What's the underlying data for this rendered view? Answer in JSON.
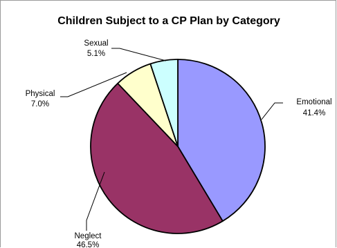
{
  "chart_data": {
    "type": "pie",
    "title": "Children Subject to a CP Plan by Category",
    "start_angle_deg": 0,
    "direction": "clockwise",
    "slices": [
      {
        "label": "Emotional",
        "value": 41.4,
        "value_label": "41.4%",
        "color": "#9999ff"
      },
      {
        "label": "Neglect",
        "value": 46.5,
        "value_label": "46.5%",
        "color": "#993366"
      },
      {
        "label": "Physical",
        "value": 7.0,
        "value_label": "7.0%",
        "color": "#ffffcc"
      },
      {
        "label": "Sexual",
        "value": 5.1,
        "value_label": "5.1%",
        "color": "#ccffff"
      }
    ],
    "legend": "none",
    "labels": "outside-with-leader-lines"
  }
}
